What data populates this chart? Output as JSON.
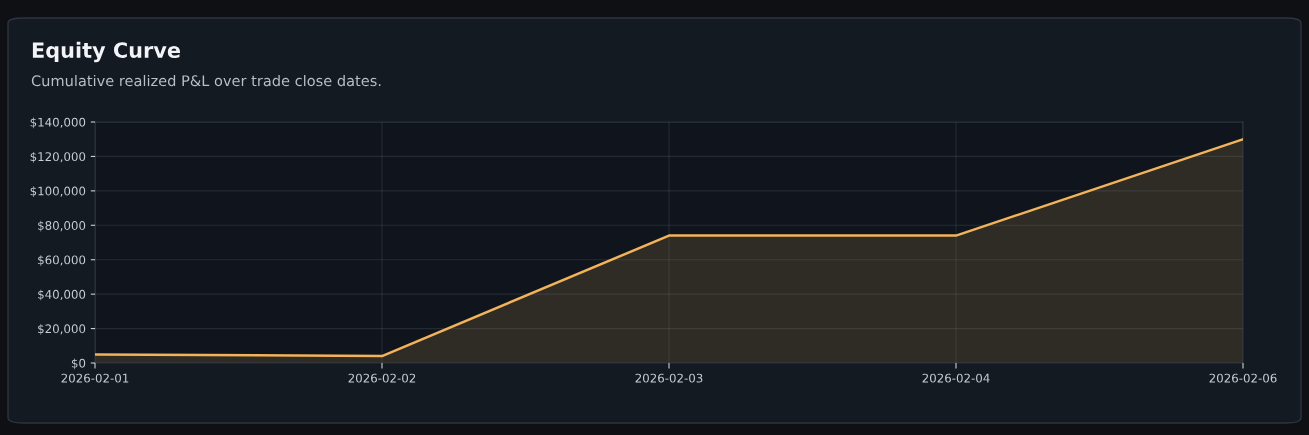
{
  "chart_data": {
    "type": "area",
    "title": "Equity Curve",
    "subtitle": "Cumulative realized P&L over trade close dates.",
    "categories": [
      "2026-02-01",
      "2026-02-02",
      "2026-02-03",
      "2026-02-04",
      "2026-02-06"
    ],
    "series": [
      {
        "color": "#f2b35b",
        "values": [
          5000,
          4000,
          74000,
          74000,
          130000
        ]
      }
    ],
    "ylim": [
      0,
      140000
    ],
    "yticks": [
      {
        "value": 0,
        "label": "$0"
      },
      {
        "value": 20000,
        "label": "$20,000"
      },
      {
        "value": 40000,
        "label": "$40,000"
      },
      {
        "value": 60000,
        "label": "$60,000"
      },
      {
        "value": 80000,
        "label": "$80,000"
      },
      {
        "value": 100000,
        "label": "$100,000"
      },
      {
        "value": 120000,
        "label": "$120,000"
      },
      {
        "value": 140000,
        "label": "$140,000"
      }
    ],
    "grid": true,
    "marker": "none",
    "line_style": "solid"
  }
}
